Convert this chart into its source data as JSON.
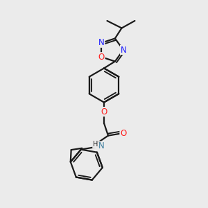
{
  "bg_color": "#ebebeb",
  "bond_color": "#1a1a1a",
  "n_color": "#2020ff",
  "o_color": "#ff2020",
  "nh_color": "#4080a0",
  "bond_lw": 1.6,
  "font_size": 8.5,
  "xlim": [
    0.0,
    1.0
  ],
  "ylim": [
    0.0,
    1.0
  ]
}
